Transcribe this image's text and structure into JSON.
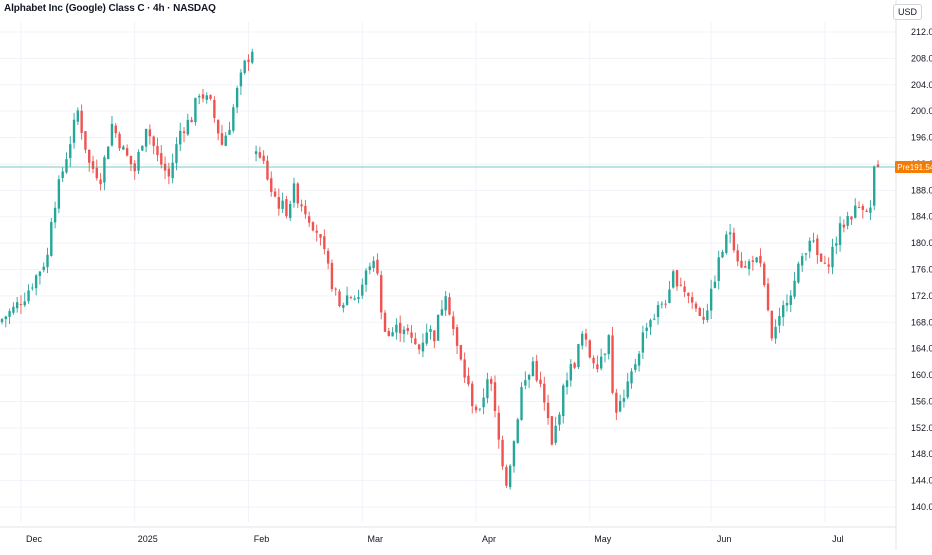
{
  "header": {
    "title": "Alphabet Inc (Google) Class C · 4h · NASDAQ",
    "currency": "USD"
  },
  "price_tag": {
    "session": "Pre",
    "price": "191.54",
    "accent_color": "#f57c00",
    "line_color": "#26a69a"
  },
  "colors": {
    "up": "#26a69a",
    "down": "#ef5350",
    "grid": "#f0f3fa",
    "axis_text": "#131722"
  },
  "chart_data": {
    "type": "candlestick",
    "title": "Alphabet Inc (Google) Class C · 4h · NASDAQ",
    "ylim": [
      137,
      214
    ],
    "y_ticks": [
      140,
      144,
      148,
      152,
      156,
      160,
      164,
      168,
      172,
      176,
      180,
      184,
      188,
      192,
      196,
      200,
      204,
      208,
      212
    ],
    "x_ticks": [
      {
        "label": "Dec",
        "index": 5
      },
      {
        "label": "2025",
        "index": 35
      },
      {
        "label": "Feb",
        "index": 65
      },
      {
        "label": "Mar",
        "index": 95
      },
      {
        "label": "Apr",
        "index": 125
      },
      {
        "label": "May",
        "index": 155
      },
      {
        "label": "Jun",
        "index": 187
      },
      {
        "label": "Jul",
        "index": 217
      }
    ],
    "anchors": [
      [
        0,
        168.5
      ],
      [
        3,
        170
      ],
      [
        6,
        172
      ],
      [
        9,
        175
      ],
      [
        12,
        178
      ],
      [
        13,
        184
      ],
      [
        16,
        191
      ],
      [
        20,
        200
      ],
      [
        23,
        192
      ],
      [
        26,
        190
      ],
      [
        29,
        198
      ],
      [
        32,
        194
      ],
      [
        35,
        191
      ],
      [
        38,
        198
      ],
      [
        41,
        193
      ],
      [
        44,
        190
      ],
      [
        47,
        197
      ],
      [
        50,
        199
      ],
      [
        52,
        203
      ],
      [
        55,
        201
      ],
      [
        58,
        195
      ],
      [
        60,
        198
      ],
      [
        62,
        203
      ],
      [
        64,
        207
      ],
      [
        66,
        209.5
      ],
      [
        67,
        193
      ],
      [
        69,
        192
      ],
      [
        71,
        188
      ],
      [
        73,
        186
      ],
      [
        75,
        185
      ],
      [
        77,
        188
      ],
      [
        79,
        186
      ],
      [
        81,
        184
      ],
      [
        83,
        182
      ],
      [
        85,
        178
      ],
      [
        87,
        174
      ],
      [
        89,
        170
      ],
      [
        91,
        172
      ],
      [
        94,
        172
      ],
      [
        97,
        177
      ],
      [
        99,
        176
      ],
      [
        100,
        169
      ],
      [
        102,
        166
      ],
      [
        104,
        167
      ],
      [
        106,
        167.5
      ],
      [
        108,
        165
      ],
      [
        110,
        164
      ],
      [
        112,
        167
      ],
      [
        114,
        166
      ],
      [
        117,
        173
      ],
      [
        118,
        170
      ],
      [
        120,
        164
      ],
      [
        122,
        160
      ],
      [
        124,
        156
      ],
      [
        126,
        154
      ],
      [
        128,
        160
      ],
      [
        129,
        158
      ],
      [
        131,
        150
      ],
      [
        133,
        144
      ],
      [
        135,
        150
      ],
      [
        137,
        158
      ],
      [
        139,
        160
      ],
      [
        140,
        162
      ],
      [
        142,
        158
      ],
      [
        144,
        153
      ],
      [
        145,
        149
      ],
      [
        147,
        155
      ],
      [
        149,
        160
      ],
      [
        151,
        162
      ],
      [
        153,
        166
      ],
      [
        155,
        163
      ],
      [
        157,
        162
      ],
      [
        159,
        164
      ],
      [
        160,
        167
      ],
      [
        161,
        157
      ],
      [
        162,
        155
      ],
      [
        164,
        156
      ],
      [
        166,
        160
      ],
      [
        168,
        164
      ],
      [
        170,
        168
      ],
      [
        172,
        169
      ],
      [
        174,
        171
      ],
      [
        176,
        172
      ],
      [
        177,
        175
      ],
      [
        179,
        174
      ],
      [
        181,
        172
      ],
      [
        183,
        170
      ],
      [
        185,
        169
      ],
      [
        187,
        172
      ],
      [
        188,
        175
      ],
      [
        190,
        179
      ],
      [
        192,
        182
      ],
      [
        194,
        178
      ],
      [
        196,
        176
      ],
      [
        198,
        178
      ],
      [
        200,
        176
      ],
      [
        202,
        170
      ],
      [
        203,
        165
      ],
      [
        205,
        168
      ],
      [
        207,
        172
      ],
      [
        209,
        174
      ],
      [
        211,
        178
      ],
      [
        213,
        181
      ],
      [
        215,
        178
      ],
      [
        217,
        176
      ],
      [
        219,
        179
      ],
      [
        221,
        182
      ],
      [
        223,
        184
      ],
      [
        225,
        185
      ],
      [
        227,
        186
      ],
      [
        229,
        185
      ],
      [
        230,
        191.5
      ]
    ]
  }
}
